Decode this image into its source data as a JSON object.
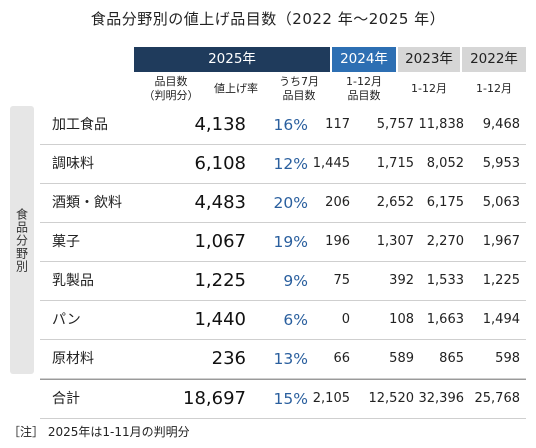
{
  "title": "食品分野別の値上げ品目数（2022 年～2025 年）",
  "headers": {
    "y2025": "2025年",
    "y2024": "2024年",
    "y2023": "2023年",
    "y2022": "2022年"
  },
  "subheaders": {
    "count": "品目数\n（判明分）",
    "rate": "値上げ率",
    "jul": "うち7月\n品目数",
    "y2024": "1-12月\n品目数",
    "y2023": "1-12月",
    "y2022": "1-12月"
  },
  "sidebar_label": "食品分野別",
  "rows": [
    {
      "name": "加工食品",
      "count": "4,138",
      "rate": "16%",
      "jul": "117",
      "y2024": "5,757",
      "y2023": "11,838",
      "y2022": "9,468"
    },
    {
      "name": "調味料",
      "count": "6,108",
      "rate": "12%",
      "jul": "1,445",
      "y2024": "1,715",
      "y2023": "8,052",
      "y2022": "5,953"
    },
    {
      "name": "酒類・飲料",
      "count": "4,483",
      "rate": "20%",
      "jul": "206",
      "y2024": "2,652",
      "y2023": "6,175",
      "y2022": "5,063"
    },
    {
      "name": "菓子",
      "count": "1,067",
      "rate": "19%",
      "jul": "196",
      "y2024": "1,307",
      "y2023": "2,270",
      "y2022": "1,967"
    },
    {
      "name": "乳製品",
      "count": "1,225",
      "rate": "9%",
      "jul": "75",
      "y2024": "392",
      "y2023": "1,533",
      "y2022": "1,225"
    },
    {
      "name": "パン",
      "count": "1,440",
      "rate": "6%",
      "jul": "0",
      "y2024": "108",
      "y2023": "1,663",
      "y2022": "1,494"
    },
    {
      "name": "原材料",
      "count": "236",
      "rate": "13%",
      "jul": "66",
      "y2024": "589",
      "y2023": "865",
      "y2022": "598"
    }
  ],
  "total": {
    "name": "合計",
    "count": "18,697",
    "rate": "15%",
    "jul": "2,105",
    "y2024": "12,520",
    "y2023": "32,396",
    "y2022": "25,768"
  },
  "note": "［注］ 2025年は1-11月の判明分",
  "colors": {
    "header2025": "#1f3b5c",
    "header2024": "#2d6fb3",
    "headerOld": "#d6d6d6",
    "rate": "#2a5f9e"
  }
}
